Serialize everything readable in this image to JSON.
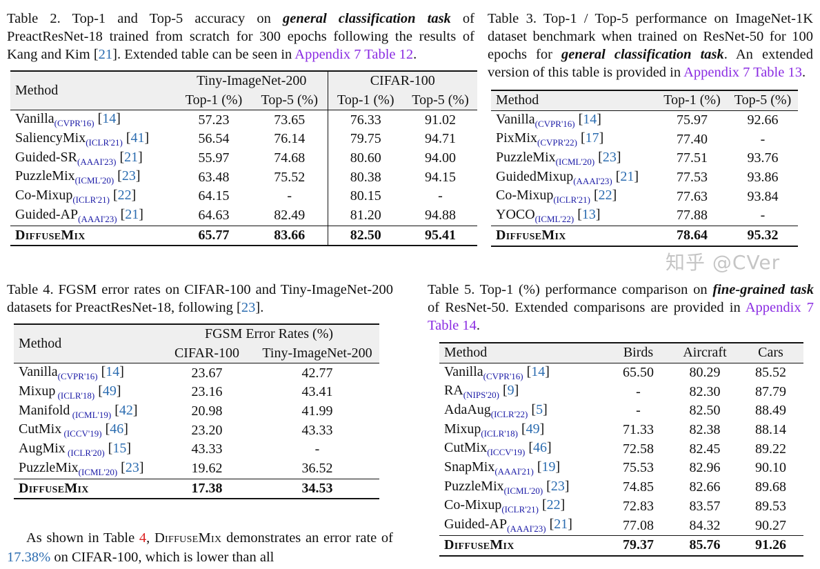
{
  "captions": {
    "t2": [
      [
        "Table 2.  Top-1 and Top-5 accuracy on ",
        ""
      ],
      [
        "general classification task",
        "bi"
      ],
      [
        " of PreactResNet-18 trained from scratch for 300 epochs following the results of Kang and Kim [",
        ""
      ],
      [
        "21",
        "cite"
      ],
      [
        "]. Extended table can be seen in ",
        ""
      ],
      [
        "Appendix 7 Table 12",
        "lnk"
      ],
      [
        ".",
        ""
      ]
    ],
    "t3": [
      [
        "Table 3.  Top-1 / Top-5 performance on ImageNet-1K dataset benchmark when trained on ResNet-50 for 100 epochs for ",
        ""
      ],
      [
        "general classification task",
        "bi"
      ],
      [
        ". An extended version of this table is provided in ",
        ""
      ],
      [
        "Appendix 7 Table 13",
        "lnk"
      ],
      [
        ".",
        ""
      ]
    ],
    "t4": [
      [
        "Table 4. FGSM error rates on CIFAR-100 and Tiny-ImageNet-200 datasets for PreactResNet-18, following [",
        ""
      ],
      [
        "23",
        "cite"
      ],
      [
        "].",
        ""
      ]
    ],
    "t5": [
      [
        "Table 5. Top-1 (%) performance comparison on ",
        ""
      ],
      [
        "fine-grained task",
        "bi"
      ],
      [
        " of ResNet-50. Extended comparisons are provided in ",
        ""
      ],
      [
        "Appendix 7 Table 14",
        "lnk"
      ],
      [
        ".",
        ""
      ]
    ]
  },
  "table2": {
    "method_header": "Method",
    "groups": [
      "Tiny-ImageNet-200",
      "CIFAR-100"
    ],
    "columns": [
      "Top-1 (%)",
      "Top-5 (%)",
      "Top-1 (%)",
      "Top-5 (%)"
    ],
    "rows": [
      {
        "name": "Vanilla",
        "venue": "(CVPR'16)",
        "ref": "14",
        "values": [
          "57.23",
          "73.65",
          "76.33",
          "91.02"
        ]
      },
      {
        "name": "SaliencyMix",
        "venue": "(ICLR'21)",
        "ref": "41",
        "values": [
          "56.54",
          "76.14",
          "79.75",
          "94.71"
        ]
      },
      {
        "name": "Guided-SR",
        "venue": "(AAAI'23)",
        "ref": "21",
        "values": [
          "55.97",
          "74.68",
          "80.60",
          "94.00"
        ]
      },
      {
        "name": "PuzzleMix",
        "venue": "(ICML'20)",
        "ref": "23",
        "values": [
          "63.48",
          "75.52",
          "80.38",
          "94.15"
        ]
      },
      {
        "name": "Co-Mixup",
        "venue": "(ICLR'21)",
        "ref": "22",
        "values": [
          "64.15",
          "-",
          "80.15",
          "-"
        ]
      },
      {
        "name": "Guided-AP",
        "venue": "(AAAI'23)",
        "ref": "21",
        "values": [
          "64.63",
          "82.49",
          "81.20",
          "94.88"
        ]
      }
    ],
    "final": {
      "name": "DiffuseMix",
      "values": [
        "65.77",
        "83.66",
        "82.50",
        "95.41"
      ]
    }
  },
  "table3": {
    "method_header": "Method",
    "columns": [
      "Top-1 (%)",
      "Top-5 (%)"
    ],
    "rows": [
      {
        "name": "Vanilla",
        "venue": "(CVPR'16)",
        "ref": "14",
        "values": [
          "75.97",
          "92.66"
        ]
      },
      {
        "name": "PixMix",
        "venue": "(CVPR'22)",
        "ref": "17",
        "values": [
          "77.40",
          "-"
        ]
      },
      {
        "name": "PuzzleMix",
        "venue": "(ICML'20)",
        "ref": "23",
        "values": [
          "77.51",
          "93.76"
        ]
      },
      {
        "name": "GuidedMixup",
        "venue": "(AAAI'23)",
        "ref": "21",
        "values": [
          "77.53",
          "93.86"
        ]
      },
      {
        "name": "Co-Mixup",
        "venue": "(ICLR'21)",
        "ref": "22",
        "values": [
          "77.63",
          "93.84"
        ]
      },
      {
        "name": "YOCO",
        "venue": "(ICML'22)",
        "ref": "13",
        "values": [
          "77.88",
          "-"
        ]
      }
    ],
    "final": {
      "name": "DiffuseMix",
      "values": [
        "78.64",
        "95.32"
      ]
    }
  },
  "table4": {
    "method_header": "Method",
    "group": "FGSM Error Rates (%)",
    "columns": [
      "CIFAR-100",
      "Tiny-ImageNet-200"
    ],
    "rows": [
      {
        "name": "Vanilla",
        "venue": "(CVPR'16)",
        "ref": "14",
        "values": [
          "23.67",
          "42.77"
        ]
      },
      {
        "name": "Mixup",
        "venue": " (ICLR'18)",
        "ref": "49",
        "values": [
          "23.16",
          "43.41"
        ]
      },
      {
        "name": "Manifold",
        "venue": " (ICML'19)",
        "ref": "42",
        "values": [
          "20.98",
          "41.99"
        ]
      },
      {
        "name": "CutMix",
        "venue": " (ICCV'19)",
        "ref": "46",
        "values": [
          "23.20",
          "43.33"
        ]
      },
      {
        "name": "AugMix",
        "venue": " (ICLR'20)",
        "ref": "15",
        "values": [
          "43.33",
          "-"
        ]
      },
      {
        "name": "PuzzleMix",
        "venue": "(ICML'20)",
        "ref": "23",
        "values": [
          "19.62",
          "36.52"
        ]
      }
    ],
    "final": {
      "name": "DiffuseMix",
      "values": [
        "17.38",
        "34.53"
      ]
    }
  },
  "table5": {
    "method_header": "Method",
    "columns": [
      "Birds",
      "Aircraft",
      "Cars"
    ],
    "rows": [
      {
        "name": "Vanilla",
        "venue": "(CVPR'16)",
        "ref": "14",
        "values": [
          "65.50",
          "80.29",
          "85.52"
        ]
      },
      {
        "name": "RA",
        "venue": "(NIPS'20)",
        "ref": "9",
        "values": [
          "-",
          "82.30",
          "87.79"
        ]
      },
      {
        "name": "AdaAug",
        "venue": "(ICLR'22)",
        "ref": "5",
        "values": [
          "-",
          "82.50",
          "88.49"
        ]
      },
      {
        "name": "Mixup",
        "venue": "(ICLR'18)",
        "ref": "49",
        "values": [
          "71.33",
          "82.38",
          "88.14"
        ]
      },
      {
        "name": "CutMix",
        "venue": "(ICCV'19)",
        "ref": "46",
        "values": [
          "72.58",
          "82.45",
          "89.22"
        ]
      },
      {
        "name": "SnapMix",
        "venue": "(AAAI'21)",
        "ref": "19",
        "values": [
          "75.53",
          "82.96",
          "90.10"
        ]
      },
      {
        "name": "PuzzleMix",
        "venue": "(ICML'20)",
        "ref": "23",
        "values": [
          "74.85",
          "82.66",
          "89.68"
        ]
      },
      {
        "name": "Co-Mixup",
        "venue": "(ICLR'21)",
        "ref": "22",
        "values": [
          "72.83",
          "83.57",
          "89.53"
        ]
      },
      {
        "name": "Guided-AP",
        "venue": "(AAAI'23)",
        "ref": "21",
        "values": [
          "77.08",
          "84.32",
          "90.27"
        ]
      }
    ],
    "final": {
      "name": "DiffuseMix",
      "values": [
        "79.37",
        "85.76",
        "91.26"
      ]
    }
  },
  "paragraph": [
    [
      "As shown in Table ",
      ""
    ],
    [
      "4",
      "red"
    ],
    [
      ", ",
      ""
    ],
    [
      "DiffuseMix",
      "dmn"
    ],
    [
      " demonstrates an error rate of ",
      ""
    ],
    [
      "17.38%",
      "blue"
    ],
    [
      " on CIFAR-100, which is lower than all",
      ""
    ]
  ],
  "watermark": "知乎 @CVer"
}
